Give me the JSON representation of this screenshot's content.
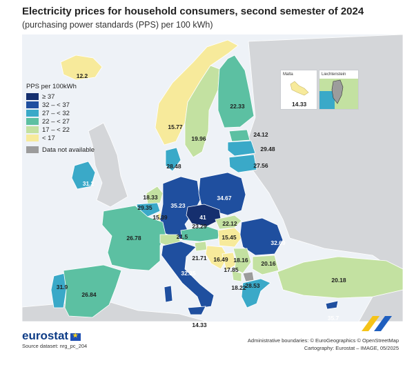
{
  "header": {
    "title": "Electricity prices for household consumers, second semester of 2024",
    "subtitle": "(purchasing power standards (PPS) per 100 kWh)"
  },
  "legend": {
    "title": "PPS per 100kWh",
    "classes": [
      {
        "label": "≥ 37",
        "color": "#152f6e"
      },
      {
        "label": "32 – < 37",
        "color": "#1f4f9f"
      },
      {
        "label": "27 – < 32",
        "color": "#3aa9c8"
      },
      {
        "label": "22 – < 27",
        "color": "#5cc0a2"
      },
      {
        "label": "17 – < 22",
        "color": "#c3e1a1"
      },
      {
        "label": "< 17",
        "color": "#f7ea9b"
      }
    ],
    "na_label": "Data not available",
    "na_color": "#9c9c9c"
  },
  "colors": {
    "sea": "#eef2f7",
    "non_eu_land": "#d4d6d9",
    "border": "#ffffff"
  },
  "insets": {
    "malta": {
      "label": "Malta",
      "value": "14.33"
    },
    "liechtenstein": {
      "label": "Liechtenstein"
    }
  },
  "values": [
    {
      "code": "IS",
      "value": "12.2"
    },
    {
      "code": "NO",
      "value": "15.77"
    },
    {
      "code": "SE",
      "value": "19.96"
    },
    {
      "code": "FI",
      "value": "22.33"
    },
    {
      "code": "EE",
      "value": "24.12"
    },
    {
      "code": "LV",
      "value": "29.48"
    },
    {
      "code": "LT",
      "value": "27.56"
    },
    {
      "code": "DK",
      "value": "28.48"
    },
    {
      "code": "IE",
      "value": "31.2"
    },
    {
      "code": "NL",
      "value": "18.33"
    },
    {
      "code": "BE",
      "value": "29.35"
    },
    {
      "code": "LU",
      "value": "15.39"
    },
    {
      "code": "DE",
      "value": "35.23"
    },
    {
      "code": "PL",
      "value": "34.67"
    },
    {
      "code": "CZ",
      "value": "41"
    },
    {
      "code": "SK",
      "value": "22.12"
    },
    {
      "code": "FR",
      "value": "26.78"
    },
    {
      "code": "CH",
      "value": "21.5"
    },
    {
      "code": "AT",
      "value": "23.29"
    },
    {
      "code": "HU",
      "value": "15.45"
    },
    {
      "code": "RO",
      "value": "32.69"
    },
    {
      "code": "SI",
      "value": "21.71"
    },
    {
      "code": "HR",
      "value": "16.49"
    },
    {
      "code": "RS",
      "value": "18.16"
    },
    {
      "code": "BA",
      "value": "17.85"
    },
    {
      "code": "ME",
      "value": "18.22"
    },
    {
      "code": "BG",
      "value": "20.16"
    },
    {
      "code": "IT",
      "value": "32.35"
    },
    {
      "code": "PT",
      "value": "31.9"
    },
    {
      "code": "ES",
      "value": "26.84"
    },
    {
      "code": "GR",
      "value": "28.53"
    },
    {
      "code": "TR",
      "value": "20.18"
    },
    {
      "code": "CY",
      "value": "35.7"
    },
    {
      "code": "MT",
      "value": "14.33"
    }
  ],
  "footer": {
    "brand": "eurostat",
    "source": "Source dataset: nrg_pc_204",
    "credits_1": "Administrative boundaries: © EuroGeographics © OpenStreetMap",
    "credits_2": "Cartography: Eurostat – IMAGE, 05/2025"
  }
}
